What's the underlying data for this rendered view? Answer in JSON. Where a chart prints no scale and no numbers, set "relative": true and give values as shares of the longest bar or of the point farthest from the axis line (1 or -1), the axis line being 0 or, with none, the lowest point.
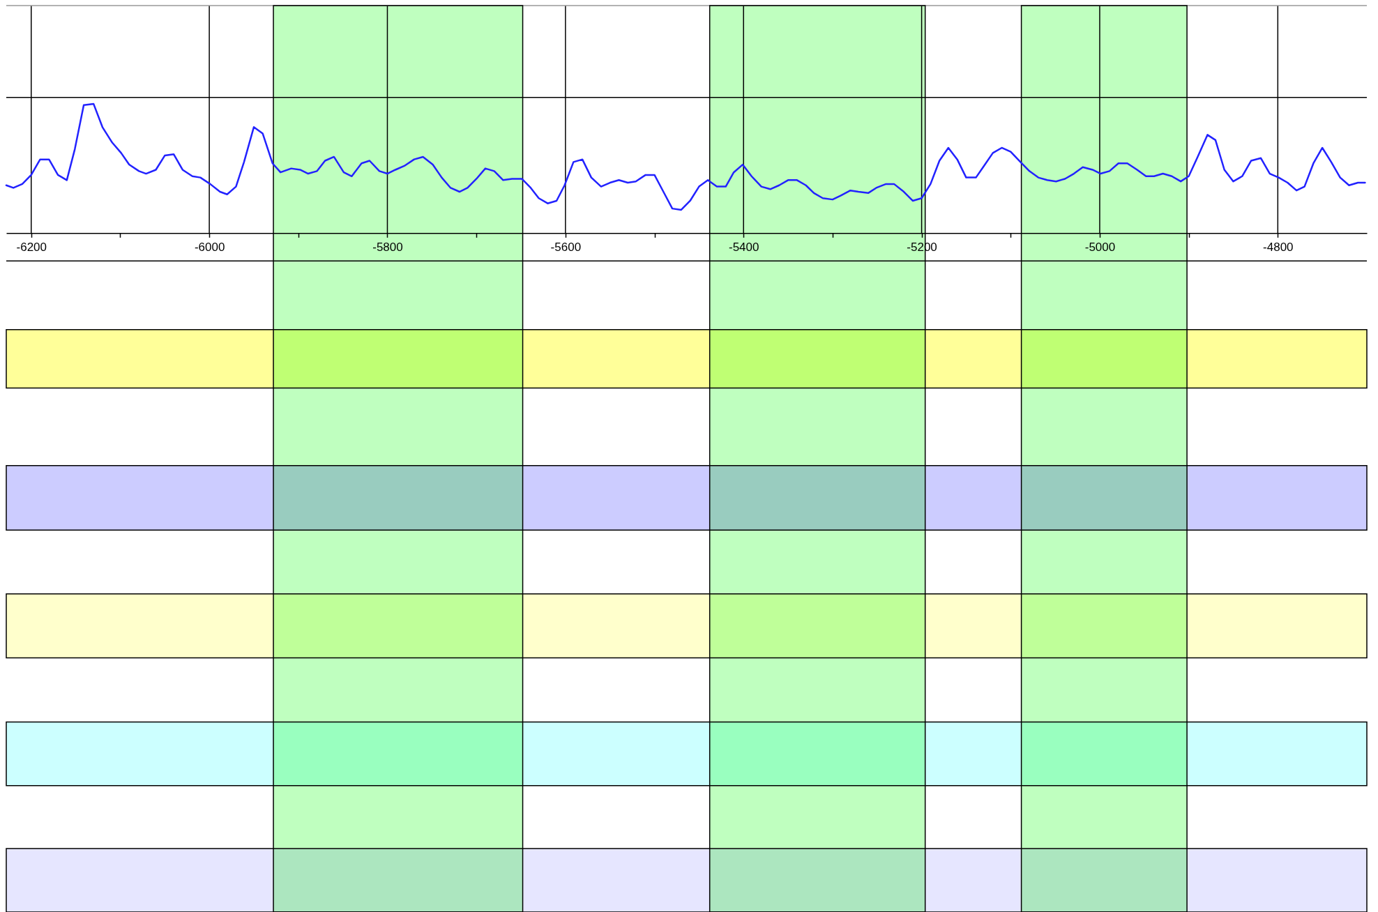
{
  "chart_data": {
    "type": "line",
    "relative": true,
    "x": [
      -6228,
      -6220,
      -6210,
      -6200,
      -6190,
      -6180,
      -6170,
      -6160,
      -6151,
      -6141,
      -6130,
      -6120,
      -6109,
      -6099,
      -6090,
      -6079,
      -6071,
      -6060,
      -6050,
      -6040,
      -6030,
      -6019,
      -6010,
      -5999,
      -5988,
      -5980,
      -5970,
      -5961,
      -5950,
      -5940,
      -5929,
      -5920,
      -5908,
      -5898,
      -5889,
      -5879,
      -5870,
      -5860,
      -5849,
      -5840,
      -5829,
      -5820,
      -5809,
      -5800,
      -5791,
      -5781,
      -5770,
      -5760,
      -5749,
      -5739,
      -5729,
      -5719,
      -5710,
      -5700,
      -5690,
      -5680,
      -5670,
      -5660,
      -5649,
      -5639,
      -5630,
      -5620,
      -5610,
      -5601,
      -5591,
      -5581,
      -5571,
      -5560,
      -5550,
      -5540,
      -5530,
      -5521,
      -5510,
      -5500,
      -5490,
      -5480,
      -5470,
      -5460,
      -5450,
      -5440,
      -5430,
      -5420,
      -5411,
      -5401,
      -5391,
      -5380,
      -5370,
      -5360,
      -5350,
      -5340,
      -5330,
      -5321,
      -5311,
      -5300,
      -5291,
      -5280,
      -5271,
      -5260,
      -5251,
      -5240,
      -5231,
      -5220,
      -5210,
      -5200,
      -5190,
      -5180,
      -5170,
      -5160,
      -5150,
      -5139,
      -5130,
      -5120,
      -5110,
      -5100,
      -5089,
      -5079,
      -5069,
      -5059,
      -5049,
      -5039,
      -5029,
      -5019,
      -5008,
      -4999,
      -4989,
      -4979,
      -4969,
      -4958,
      -4948,
      -4939,
      -4929,
      -4919,
      -4909,
      -4900,
      -4890,
      -4879,
      -4870,
      -4860,
      -4850,
      -4840,
      -4830,
      -4819,
      -4809,
      -4799,
      -4789,
      -4779,
      -4770,
      -4760,
      -4750,
      -4740,
      -4730,
      -4720,
      -4710,
      -4702
    ],
    "series": [
      {
        "color": "#2222ff",
        "values": [
          0.37,
          0.35,
          0.38,
          0.45,
          0.57,
          0.57,
          0.45,
          0.41,
          0.65,
          0.99,
          1.0,
          0.82,
          0.7,
          0.62,
          0.53,
          0.48,
          0.46,
          0.49,
          0.6,
          0.61,
          0.49,
          0.44,
          0.43,
          0.38,
          0.32,
          0.3,
          0.36,
          0.55,
          0.82,
          0.77,
          0.54,
          0.47,
          0.5,
          0.49,
          0.46,
          0.48,
          0.56,
          0.59,
          0.47,
          0.44,
          0.54,
          0.56,
          0.48,
          0.46,
          0.49,
          0.52,
          0.57,
          0.59,
          0.53,
          0.43,
          0.35,
          0.32,
          0.35,
          0.42,
          0.5,
          0.48,
          0.41,
          0.42,
          0.42,
          0.35,
          0.27,
          0.23,
          0.25,
          0.37,
          0.55,
          0.57,
          0.43,
          0.36,
          0.39,
          0.41,
          0.39,
          0.4,
          0.45,
          0.45,
          0.32,
          0.19,
          0.18,
          0.25,
          0.36,
          0.41,
          0.36,
          0.36,
          0.47,
          0.53,
          0.44,
          0.36,
          0.34,
          0.37,
          0.41,
          0.41,
          0.37,
          0.31,
          0.27,
          0.26,
          0.29,
          0.33,
          0.32,
          0.31,
          0.35,
          0.38,
          0.38,
          0.32,
          0.25,
          0.27,
          0.38,
          0.56,
          0.66,
          0.57,
          0.43,
          0.43,
          0.52,
          0.62,
          0.66,
          0.63,
          0.55,
          0.48,
          0.43,
          0.41,
          0.4,
          0.42,
          0.46,
          0.51,
          0.49,
          0.46,
          0.48,
          0.54,
          0.54,
          0.49,
          0.44,
          0.44,
          0.46,
          0.44,
          0.4,
          0.44,
          0.59,
          0.76,
          0.72,
          0.49,
          0.4,
          0.44,
          0.56,
          0.58,
          0.46,
          0.43,
          0.39,
          0.33,
          0.36,
          0.54,
          0.66,
          0.55,
          0.43,
          0.37,
          0.39,
          0.39
        ]
      }
    ],
    "xlim": [
      -6228,
      -4700
    ],
    "xticks": [
      -6200,
      {
        "value": -6100,
        "label": null
      },
      -6000,
      {
        "value": -5900,
        "label": null
      },
      -5800,
      {
        "value": -5700,
        "label": null
      },
      -5600,
      {
        "value": -5500,
        "label": null
      },
      -5400,
      {
        "value": -5300,
        "label": null
      },
      -5200,
      {
        "value": -5100,
        "label": null
      },
      -5000,
      {
        "value": -4900,
        "label": null
      },
      -4800
    ],
    "grid": "x",
    "ref_lines": [
      {
        "axis": "y",
        "value": 1.76,
        "color": "#999999"
      },
      {
        "axis": "y",
        "value": 1.05,
        "color": "#000000"
      },
      {
        "axis": "y",
        "value": -0.215,
        "color": "#000000"
      }
    ],
    "bands": [
      {
        "axis": "y",
        "from": -1.198,
        "to": -0.746,
        "color": "#ffff99"
      },
      {
        "axis": "y",
        "from": -2.297,
        "to": -1.798,
        "color": "#ccccff"
      },
      {
        "axis": "y",
        "from": -3.285,
        "to": -2.79,
        "color": "#ffffcc"
      },
      {
        "axis": "y",
        "from": -4.274,
        "to": -3.782,
        "color": "#ccffff"
      },
      {
        "axis": "y",
        "from": -5.251,
        "to": -4.76,
        "color": "#e6e6ff"
      },
      {
        "axis": "x",
        "from": -5928,
        "to": -5648,
        "color": "#bfffbf"
      },
      {
        "axis": "x",
        "from": -5438,
        "to": -5196,
        "color": "#bfffbf"
      },
      {
        "axis": "x",
        "from": -5088,
        "to": -4902,
        "color": "#bfffbf"
      }
    ]
  }
}
